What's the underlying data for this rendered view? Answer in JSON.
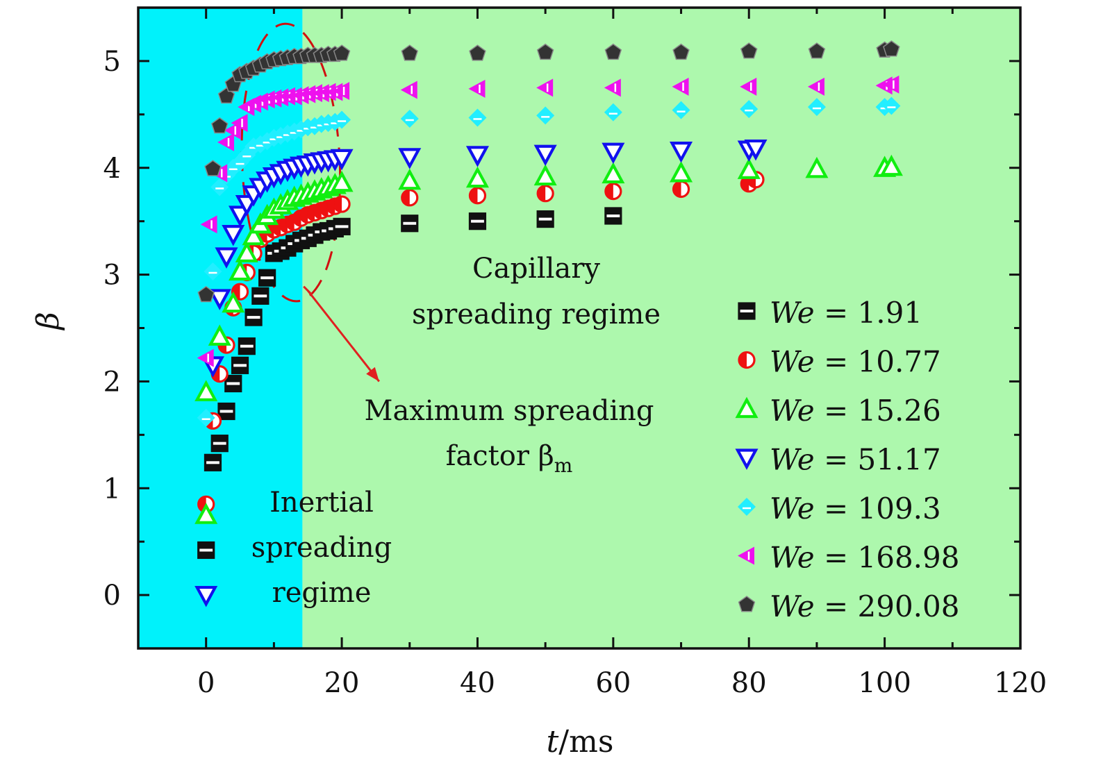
{
  "chart_data": {
    "type": "scatter",
    "xlabel_var": "t",
    "xlabel_unit": "/ms",
    "ylabel": "β",
    "xlim": [
      -10,
      120
    ],
    "ylim": [
      -0.5,
      5.5
    ],
    "x_ticks": [
      "0",
      "20",
      "40",
      "60",
      "80",
      "100",
      "120"
    ],
    "y_ticks": [
      "0",
      "1",
      "2",
      "3",
      "4",
      "5"
    ],
    "regions": [
      {
        "name": "inertial",
        "x_range": [
          -10,
          14.2
        ],
        "color": "#00f2fb"
      },
      {
        "name": "capillary",
        "x_range": [
          14.2,
          120
        ],
        "color": "#adf8ad"
      }
    ],
    "annotations": {
      "capillary_line1": "Capillary",
      "capillary_line2": "spreading regime",
      "max_line1": "Maximum spreading",
      "max_line2": "factor β",
      "max_sub": "m",
      "inertial_line1": "Inertial",
      "inertial_line2": "spreading",
      "inertial_line3": "regime"
    },
    "arrow": {
      "from": [
        15,
        2.85
      ],
      "to": [
        25.5,
        2.0
      ],
      "color": "#e02020"
    },
    "dashed_ellipse": {
      "cx": 12.5,
      "cy": 4.05,
      "rx": 7.2,
      "ry": 1.3,
      "angle": -2.5,
      "color": "#d01010"
    },
    "legend_prefix": "We = ",
    "series": [
      {
        "name": "We = 1.91",
        "we": "1.91",
        "marker": "square",
        "color": "#111111",
        "x": [
          1,
          2,
          3,
          4,
          5,
          6,
          7,
          8,
          9,
          10,
          11,
          12,
          13,
          14,
          15,
          16,
          17,
          18,
          19,
          20,
          30,
          40,
          50,
          60
        ],
        "y": [
          1.24,
          1.42,
          1.72,
          1.98,
          2.15,
          2.33,
          2.6,
          2.8,
          2.97,
          3.2,
          3.22,
          3.25,
          3.29,
          3.32,
          3.34,
          3.37,
          3.4,
          3.41,
          3.43,
          3.45,
          3.48,
          3.5,
          3.52,
          3.55
        ]
      },
      {
        "name": "We = 10.77",
        "we": "10.77",
        "marker": "circle",
        "color": "#ee1111",
        "x": [
          1,
          2,
          3,
          4,
          5,
          6,
          7,
          8,
          9,
          10,
          11,
          12,
          13,
          14,
          15,
          16,
          17,
          18,
          19,
          20,
          30,
          40,
          50,
          60,
          70,
          80,
          81
        ],
        "y": [
          1.63,
          2.07,
          2.34,
          2.69,
          2.84,
          3.02,
          3.2,
          3.33,
          3.38,
          3.42,
          3.44,
          3.47,
          3.49,
          3.53,
          3.56,
          3.58,
          3.6,
          3.62,
          3.64,
          3.66,
          3.72,
          3.74,
          3.76,
          3.78,
          3.8,
          3.85,
          3.89
        ]
      },
      {
        "name": "We = 15.26",
        "we": "15.26",
        "marker": "triangle-up",
        "color": "#11ee11",
        "x": [
          0,
          2,
          4,
          5,
          6,
          7,
          8,
          9,
          10,
          11,
          12,
          13,
          14,
          15,
          16,
          17,
          18,
          19,
          20,
          30,
          40,
          50,
          60,
          70,
          80,
          90,
          100,
          101
        ],
        "y": [
          1.9,
          2.42,
          2.73,
          3.03,
          3.2,
          3.36,
          3.47,
          3.55,
          3.61,
          3.65,
          3.69,
          3.72,
          3.74,
          3.76,
          3.78,
          3.8,
          3.82,
          3.84,
          3.86,
          3.88,
          3.9,
          3.92,
          3.94,
          3.95,
          3.98,
          3.99,
          4.0,
          4.01
        ]
      },
      {
        "name": "We = 51.17",
        "we": "51.17",
        "marker": "triangle-down",
        "color": "#1111ee",
        "x": [
          1,
          2,
          3,
          4,
          5,
          6,
          7,
          8,
          9,
          10,
          11,
          12,
          13,
          14,
          15,
          16,
          17,
          18,
          19,
          20,
          30,
          40,
          50,
          60,
          70,
          80,
          81
        ],
        "y": [
          2.15,
          2.78,
          3.17,
          3.38,
          3.56,
          3.66,
          3.75,
          3.82,
          3.88,
          3.92,
          3.95,
          3.98,
          4.0,
          4.02,
          4.03,
          4.05,
          4.06,
          4.07,
          4.08,
          4.09,
          4.1,
          4.12,
          4.13,
          4.15,
          4.16,
          4.17,
          4.18
        ]
      },
      {
        "name": "We = 109.3",
        "we": "109.3",
        "marker": "diamond",
        "color": "#22eeff",
        "x": [
          0,
          1,
          2,
          3,
          4,
          5,
          6,
          7,
          8,
          9,
          10,
          11,
          12,
          13,
          14,
          15,
          16,
          17,
          18,
          19,
          20,
          30,
          40,
          50,
          60,
          70,
          80,
          90,
          100,
          101
        ],
        "y": [
          1.66,
          3.03,
          3.82,
          3.93,
          4.0,
          4.05,
          4.12,
          4.2,
          4.22,
          4.25,
          4.28,
          4.3,
          4.32,
          4.34,
          4.36,
          4.38,
          4.39,
          4.41,
          4.42,
          4.43,
          4.45,
          4.46,
          4.47,
          4.49,
          4.52,
          4.54,
          4.55,
          4.57,
          4.57,
          4.58
        ]
      },
      {
        "name": "We = 168.98",
        "we": "168.98",
        "marker": "triangle-left",
        "color": "#ee11ee",
        "x": [
          0,
          0.5,
          2,
          3,
          4,
          5,
          6,
          7,
          8,
          9,
          10,
          11,
          12,
          13,
          14,
          15,
          16,
          17,
          18,
          19,
          20,
          30,
          40,
          50,
          60,
          70,
          80,
          90,
          100,
          101
        ],
        "y": [
          2.22,
          3.47,
          3.95,
          4.24,
          4.35,
          4.42,
          4.57,
          4.6,
          4.62,
          4.64,
          4.65,
          4.66,
          4.67,
          4.67,
          4.68,
          4.69,
          4.7,
          4.7,
          4.71,
          4.71,
          4.72,
          4.73,
          4.74,
          4.75,
          4.75,
          4.76,
          4.76,
          4.76,
          4.77,
          4.78
        ]
      },
      {
        "name": "We = 290.08",
        "we": "290.08",
        "marker": "pentagon",
        "color": "#333333",
        "x": [
          0,
          1,
          2,
          3,
          4,
          5,
          6,
          7,
          8,
          9,
          10,
          11,
          12,
          13,
          14,
          15,
          16,
          17,
          18,
          19,
          20,
          30,
          40,
          50,
          60,
          70,
          80,
          90,
          100,
          101
        ],
        "y": [
          2.81,
          3.99,
          4.39,
          4.67,
          4.78,
          4.87,
          4.9,
          4.93,
          4.96,
          4.99,
          5.01,
          5.02,
          5.03,
          5.04,
          5.04,
          5.05,
          5.05,
          5.05,
          5.06,
          5.06,
          5.07,
          5.07,
          5.07,
          5.08,
          5.08,
          5.08,
          5.09,
          5.09,
          5.1,
          5.11
        ]
      }
    ],
    "inertial_legend_markers": [
      {
        "marker": "circle",
        "color": "#ee1111",
        "y": 0.85
      },
      {
        "marker": "triangle-up",
        "color": "#11ee11",
        "y": 0.75
      },
      {
        "marker": "square",
        "color": "#111111",
        "y": 0.42
      },
      {
        "marker": "triangle-down",
        "color": "#1111ee",
        "y": 0.0
      }
    ]
  }
}
